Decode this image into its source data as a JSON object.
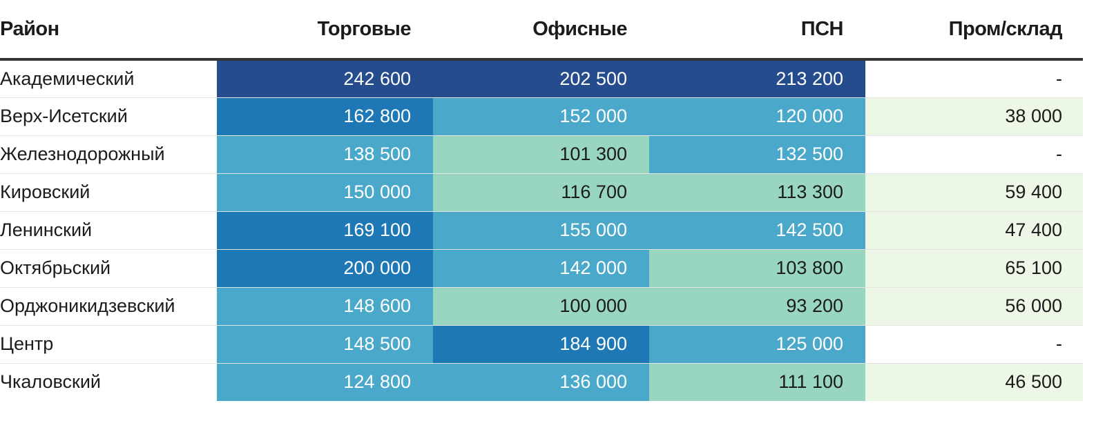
{
  "chart_data": {
    "type": "table",
    "columns": [
      "Район",
      "Торговые",
      "Офисные",
      "ПСН",
      "Пром/склад"
    ],
    "rows": [
      {
        "district": "Академический",
        "values": [
          "242 600",
          "202 500",
          "213 200",
          "-"
        ]
      },
      {
        "district": "Верх-Исетский",
        "values": [
          "162 800",
          "152 000",
          "120 000",
          "38 000"
        ]
      },
      {
        "district": "Железнодорожный",
        "values": [
          "138 500",
          "101 300",
          "132 500",
          "-"
        ]
      },
      {
        "district": "Кировский",
        "values": [
          "150 000",
          "116 700",
          "113 300",
          "59 400"
        ]
      },
      {
        "district": "Ленинский",
        "values": [
          "169 100",
          "155 000",
          "142 500",
          "47 400"
        ]
      },
      {
        "district": "Октябрьский",
        "values": [
          "200 000",
          "142 000",
          "103 800",
          "65 100"
        ]
      },
      {
        "district": "Орджоникидзевский",
        "values": [
          "148 600",
          "100 000",
          "93 200",
          "56 000"
        ]
      },
      {
        "district": "Центр",
        "values": [
          "148 500",
          "184 900",
          "125 000",
          "-"
        ]
      },
      {
        "district": "Чкаловский",
        "values": [
          "124 800",
          "136 000",
          "111 100",
          "46 500"
        ]
      }
    ],
    "color_scale": {
      "level_1": "#edf7e6",
      "level_2": "#98d6c0",
      "level_3": "#4aa8cb",
      "level_4": "#1e78b6",
      "level_5": "#254d8e",
      "empty": "#ffffff",
      "dark_text": "#1b1b1b",
      "light_text": "#ffffff"
    }
  }
}
